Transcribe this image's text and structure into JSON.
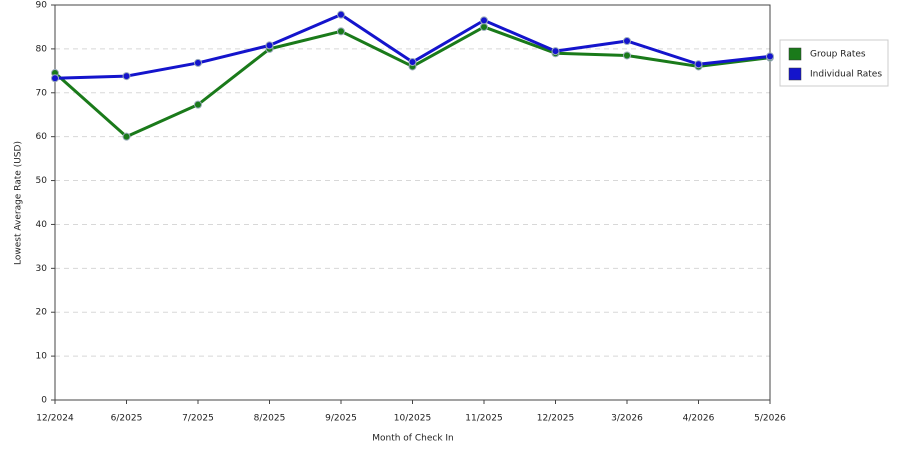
{
  "chart_data": {
    "type": "line",
    "x_label": "Month of Check In",
    "y_label": "Lowest Average Rate (USD)",
    "categories": [
      "12/2024",
      "6/2025",
      "7/2025",
      "8/2025",
      "9/2025",
      "10/2025",
      "11/2025",
      "12/2025",
      "3/2026",
      "4/2026",
      "5/2026"
    ],
    "series": [
      {
        "name": "Group Rates",
        "color": "#1a7a1a",
        "values": [
          74.5,
          60,
          67.3,
          80,
          84,
          76,
          85,
          79,
          78.5,
          76,
          78
        ]
      },
      {
        "name": "Individual Rates",
        "color": "#1414cc",
        "values": [
          73.3,
          73.8,
          76.8,
          80.8,
          87.8,
          77,
          86.5,
          79.5,
          81.8,
          76.5,
          78.3
        ]
      }
    ],
    "ylim": [
      0,
      90
    ],
    "yticks": [
      0,
      10,
      20,
      30,
      40,
      50,
      60,
      70,
      80,
      90
    ],
    "grid": true,
    "legend": "right"
  }
}
